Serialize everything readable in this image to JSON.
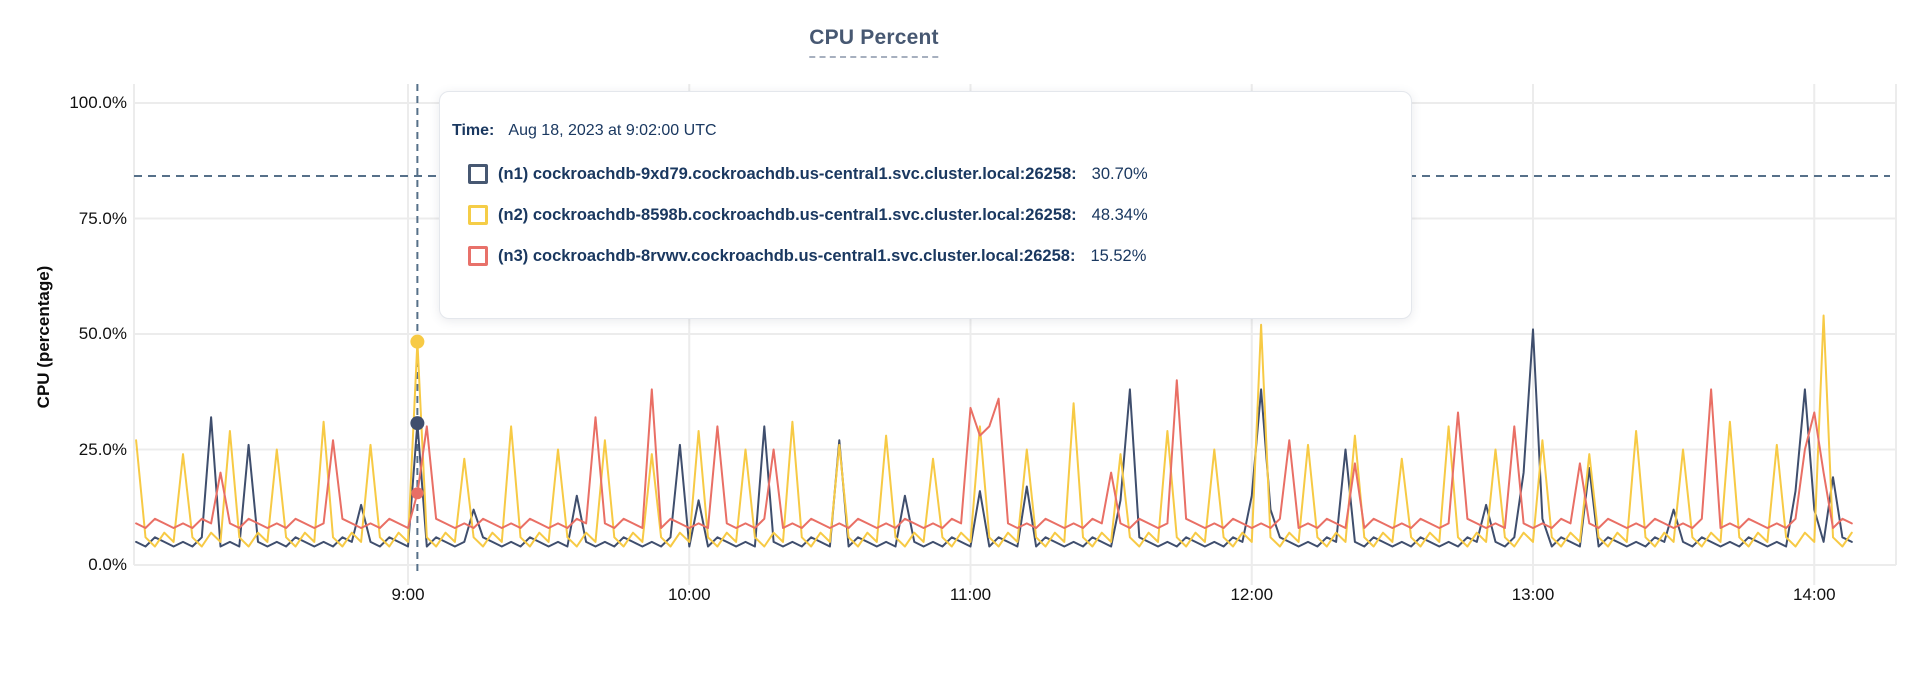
{
  "title": {
    "text": "CPU Percent"
  },
  "y_axis": {
    "label": "CPU (percentage)",
    "ticks": [
      {
        "label": "0.0%",
        "value": 0
      },
      {
        "label": "25.0%",
        "value": 25
      },
      {
        "label": "50.0%",
        "value": 50
      },
      {
        "label": "75.0%",
        "value": 75
      },
      {
        "label": "100.0%",
        "value": 100
      }
    ]
  },
  "x_axis": {
    "ticks": [
      {
        "label": "9:00",
        "minute": 540
      },
      {
        "label": "10:00",
        "minute": 600
      },
      {
        "label": "11:00",
        "minute": 660
      },
      {
        "label": "12:00",
        "minute": 720
      },
      {
        "label": "13:00",
        "minute": 780
      },
      {
        "label": "14:00",
        "minute": 840
      }
    ]
  },
  "tooltip": {
    "time_label": "Time:",
    "time_value": "Aug 18, 2023 at 9:02:00 UTC",
    "rows": [
      {
        "label": "(n1) cockroachdb-9xd79.cockroachdb.us-central1.svc.cluster.local:26258:",
        "value": "30.70%",
        "color": "#475872"
      },
      {
        "label": "(n2) cockroachdb-8598b.cockroachdb.us-central1.svc.cluster.local:26258:",
        "value": "48.34%",
        "color": "#f5cd47"
      },
      {
        "label": "(n3) cockroachdb-8rvwv.cockroachdb.us-central1.svc.cluster.local:26258:",
        "value": "15.52%",
        "color": "#e8716a"
      }
    ]
  },
  "colors": {
    "grid": "#ececec",
    "dashed_guides": "#567089",
    "title": "#475872",
    "tooltip_text": "#1a3860",
    "axis_text": "#111111"
  },
  "hover": {
    "minute": 542,
    "time": "Aug 18, 2023 at 9:02:00 UTC",
    "points": [
      {
        "series": "n2",
        "value": 48.34,
        "color": "#f7ca45",
        "radius": 7
      },
      {
        "series": "n1",
        "value": 30.7,
        "color": "#3f4e6d",
        "radius": 7
      },
      {
        "series": "n3",
        "value": 15.52,
        "color": "#e96f65",
        "radius": 6
      }
    ]
  },
  "chart_data": {
    "type": "line",
    "title": "CPU Percent",
    "xlabel": "",
    "ylabel": "CPU (percentage)",
    "ylim": [
      0,
      100
    ],
    "grid": true,
    "legend_position": "tooltip-overlay",
    "threshold_percent": 84.2,
    "x_start_minutes": 482,
    "x_step_minutes": 2,
    "x_tick_minutes": [
      540,
      600,
      660,
      720,
      780,
      840
    ],
    "x_tick_labels": [
      "9:00",
      "10:00",
      "11:00",
      "12:00",
      "13:00",
      "14:00"
    ],
    "series": [
      {
        "name": "(n1) cockroachdb-9xd79.cockroachdb.us-central1.svc.cluster.local:26258",
        "color": "#3f4e6d",
        "values": [
          5,
          4,
          6,
          5,
          4,
          5,
          4,
          6,
          32,
          4,
          5,
          4,
          26,
          5,
          4,
          5,
          4,
          6,
          5,
          4,
          5,
          4,
          6,
          5,
          13,
          5,
          4,
          6,
          5,
          4,
          30.7,
          4,
          6,
          5,
          4,
          5,
          12,
          6,
          5,
          4,
          5,
          4,
          6,
          5,
          4,
          5,
          4,
          15,
          5,
          4,
          5,
          4,
          6,
          5,
          4,
          5,
          4,
          6,
          26,
          4,
          14,
          4,
          6,
          5,
          4,
          5,
          4,
          30,
          5,
          4,
          5,
          4,
          6,
          5,
          4,
          27,
          4,
          6,
          5,
          4,
          5,
          4,
          15,
          5,
          4,
          5,
          4,
          6,
          5,
          4,
          16,
          4,
          6,
          5,
          4,
          17,
          4,
          6,
          5,
          4,
          5,
          4,
          6,
          5,
          4,
          14,
          38,
          6,
          5,
          4,
          5,
          4,
          6,
          5,
          4,
          5,
          4,
          6,
          5,
          15,
          38,
          12,
          6,
          5,
          4,
          5,
          4,
          6,
          5,
          25,
          5,
          4,
          6,
          5,
          4,
          5,
          4,
          6,
          5,
          4,
          5,
          4,
          6,
          5,
          13,
          5,
          4,
          6,
          20,
          51,
          10,
          4,
          6,
          5,
          4,
          21,
          4,
          6,
          5,
          4,
          5,
          4,
          6,
          5,
          12,
          5,
          4,
          6,
          5,
          4,
          5,
          4,
          6,
          5,
          4,
          5,
          4,
          16,
          38,
          12,
          5,
          19,
          6,
          5
        ]
      },
      {
        "name": "(n2) cockroachdb-8598b.cockroachdb.us-central1.svc.cluster.local:26258",
        "color": "#f7ca45",
        "values": [
          27,
          6,
          4,
          7,
          5,
          24,
          6,
          4,
          7,
          5,
          29,
          6,
          4,
          7,
          5,
          25,
          6,
          4,
          7,
          5,
          31,
          6,
          4,
          7,
          5,
          26,
          6,
          4,
          7,
          5,
          48.34,
          6,
          4,
          7,
          5,
          23,
          6,
          4,
          7,
          5,
          30,
          6,
          4,
          7,
          5,
          25,
          6,
          4,
          7,
          5,
          27,
          6,
          4,
          7,
          5,
          24,
          6,
          4,
          7,
          5,
          29,
          6,
          4,
          7,
          5,
          25,
          6,
          4,
          7,
          5,
          31,
          6,
          4,
          7,
          5,
          26,
          6,
          4,
          7,
          5,
          28,
          6,
          4,
          7,
          5,
          23,
          6,
          4,
          7,
          5,
          30,
          6,
          4,
          7,
          5,
          25,
          6,
          4,
          7,
          5,
          35,
          6,
          4,
          7,
          5,
          24,
          6,
          4,
          7,
          5,
          29,
          6,
          4,
          7,
          5,
          25,
          6,
          4,
          7,
          5,
          52,
          6,
          4,
          7,
          5,
          26,
          6,
          4,
          7,
          5,
          28,
          6,
          4,
          7,
          5,
          23,
          6,
          4,
          7,
          5,
          30,
          6,
          4,
          7,
          5,
          25,
          6,
          4,
          7,
          5,
          27,
          6,
          4,
          7,
          5,
          24,
          6,
          4,
          7,
          5,
          29,
          6,
          4,
          7,
          5,
          25,
          6,
          4,
          7,
          5,
          31,
          6,
          4,
          7,
          5,
          26,
          6,
          4,
          7,
          5,
          54,
          6,
          4,
          7
        ]
      },
      {
        "name": "(n3) cockroachdb-8rvwv.cockroachdb.us-central1.svc.cluster.local:26258",
        "color": "#e96f65",
        "values": [
          9,
          8,
          10,
          9,
          8,
          9,
          8,
          10,
          9,
          20,
          9,
          8,
          10,
          9,
          8,
          9,
          8,
          10,
          9,
          8,
          9,
          27,
          10,
          9,
          8,
          9,
          8,
          10,
          9,
          8,
          15.52,
          30,
          10,
          9,
          8,
          9,
          8,
          10,
          9,
          8,
          9,
          8,
          10,
          9,
          8,
          9,
          8,
          10,
          9,
          32,
          9,
          8,
          10,
          9,
          8,
          38,
          8,
          10,
          9,
          8,
          9,
          8,
          30,
          9,
          8,
          9,
          8,
          10,
          25,
          8,
          9,
          8,
          10,
          9,
          8,
          9,
          8,
          10,
          9,
          8,
          9,
          8,
          10,
          9,
          8,
          9,
          8,
          10,
          9,
          34,
          28,
          30,
          36,
          9,
          8,
          9,
          8,
          10,
          9,
          8,
          9,
          8,
          10,
          9,
          20,
          9,
          8,
          10,
          9,
          8,
          9,
          40,
          10,
          9,
          8,
          9,
          8,
          10,
          9,
          8,
          9,
          8,
          10,
          27,
          8,
          9,
          8,
          10,
          9,
          8,
          22,
          8,
          10,
          9,
          8,
          9,
          8,
          10,
          9,
          8,
          9,
          33,
          10,
          9,
          8,
          9,
          8,
          30,
          9,
          8,
          9,
          8,
          10,
          9,
          22,
          9,
          8,
          10,
          9,
          8,
          9,
          8,
          10,
          9,
          8,
          9,
          8,
          10,
          38,
          8,
          9,
          8,
          10,
          9,
          8,
          9,
          8,
          10,
          25,
          33,
          20,
          8,
          10,
          9
        ]
      }
    ]
  }
}
